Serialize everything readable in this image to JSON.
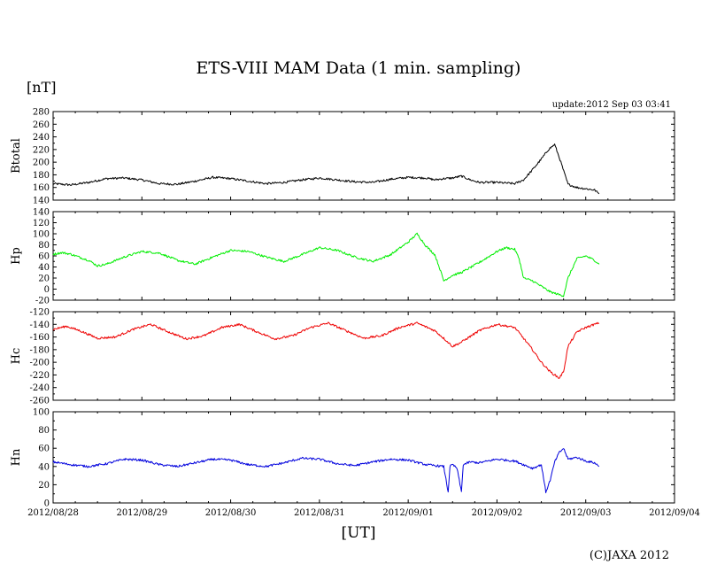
{
  "title": "ETS-VIII MAM Data (1 min. sampling)",
  "unit_label": "[nT]",
  "update_text": "update:2012 Sep 03 03:41",
  "x_unit_label": "[UT]",
  "copyright": "(C)JAXA 2012",
  "chart_data": [
    {
      "type": "line",
      "ylabel": "Btotal",
      "color": "#000000",
      "ylim": [
        140,
        280
      ],
      "yticks": [
        140,
        160,
        180,
        200,
        220,
        240,
        260,
        280
      ],
      "xlim": [
        0,
        7
      ],
      "x_tick_labels": [
        "2012/08/28",
        "2012/08/29",
        "2012/08/30",
        "2012/08/31",
        "2012/09/01",
        "2012/09/02",
        "2012/09/03",
        "2012/09/04"
      ],
      "series": [
        {
          "x": [
            0,
            0.2,
            0.4,
            0.6,
            0.8,
            1.0,
            1.2,
            1.4,
            1.6,
            1.8,
            2.0,
            2.2,
            2.4,
            2.6,
            2.8,
            3.0,
            3.2,
            3.4,
            3.6,
            3.8,
            4.0,
            4.2,
            4.3,
            4.4,
            4.5,
            4.6,
            4.7,
            4.8,
            5.0,
            5.1,
            5.2,
            5.3,
            5.4,
            5.5,
            5.58,
            5.65,
            5.72,
            5.8,
            5.9,
            6.0,
            6.1,
            6.15
          ],
          "y": [
            166,
            164,
            168,
            174,
            175,
            172,
            166,
            165,
            170,
            176,
            174,
            170,
            166,
            168,
            172,
            175,
            172,
            169,
            168,
            173,
            176,
            175,
            172,
            174,
            175,
            178,
            172,
            168,
            168,
            167,
            166,
            172,
            188,
            205,
            220,
            228,
            200,
            165,
            160,
            158,
            156,
            150
          ]
        }
      ]
    },
    {
      "type": "line",
      "ylabel": "Hp",
      "color": "#00ee00",
      "ylim": [
        -20,
        140
      ],
      "yticks": [
        -20,
        0,
        20,
        40,
        60,
        80,
        100,
        120,
        140
      ],
      "xlim": [
        0,
        7
      ],
      "x_tick_labels": [
        "2012/08/28",
        "2012/08/29",
        "2012/08/30",
        "2012/08/31",
        "2012/09/01",
        "2012/09/02",
        "2012/09/03",
        "2012/09/04"
      ],
      "series": [
        {
          "x": [
            0,
            0.1,
            0.2,
            0.4,
            0.5,
            0.6,
            0.8,
            1.0,
            1.2,
            1.4,
            1.6,
            1.8,
            2.0,
            2.2,
            2.4,
            2.6,
            2.8,
            3.0,
            3.2,
            3.4,
            3.6,
            3.8,
            4.0,
            4.1,
            4.2,
            4.3,
            4.35,
            4.4,
            4.5,
            4.6,
            4.8,
            5.0,
            5.1,
            5.2,
            5.25,
            5.3,
            5.4,
            5.5,
            5.6,
            5.7,
            5.75,
            5.8,
            5.9,
            6.0,
            6.1,
            6.15
          ],
          "y": [
            63,
            66,
            63,
            52,
            42,
            45,
            58,
            68,
            65,
            52,
            45,
            58,
            70,
            68,
            58,
            50,
            62,
            75,
            70,
            58,
            50,
            62,
            85,
            100,
            78,
            62,
            40,
            15,
            25,
            30,
            48,
            68,
            75,
            72,
            55,
            20,
            15,
            5,
            -5,
            -10,
            -12,
            20,
            55,
            60,
            52,
            45
          ]
        }
      ]
    },
    {
      "type": "line",
      "ylabel": "Hc",
      "color": "#ee0000",
      "ylim": [
        -260,
        -120
      ],
      "yticks": [
        -260,
        -240,
        -220,
        -200,
        -180,
        -160,
        -140,
        -120
      ],
      "xlim": [
        0,
        7
      ],
      "x_tick_labels": [
        "2012/08/28",
        "2012/08/29",
        "2012/08/30",
        "2012/08/31",
        "2012/09/01",
        "2012/09/02",
        "2012/09/03",
        "2012/09/04"
      ],
      "series": [
        {
          "x": [
            0,
            0.15,
            0.3,
            0.5,
            0.7,
            0.9,
            1.1,
            1.3,
            1.5,
            1.7,
            1.9,
            2.1,
            2.3,
            2.5,
            2.7,
            2.9,
            3.1,
            3.3,
            3.5,
            3.7,
            3.9,
            4.1,
            4.3,
            4.4,
            4.5,
            4.6,
            4.8,
            5.0,
            5.2,
            5.3,
            5.4,
            5.5,
            5.6,
            5.7,
            5.75,
            5.8,
            5.9,
            6.0,
            6.1,
            6.15
          ],
          "y": [
            -148,
            -143,
            -150,
            -162,
            -160,
            -148,
            -140,
            -152,
            -163,
            -158,
            -145,
            -140,
            -152,
            -163,
            -158,
            -145,
            -138,
            -150,
            -162,
            -158,
            -145,
            -138,
            -150,
            -162,
            -175,
            -168,
            -150,
            -140,
            -145,
            -162,
            -180,
            -200,
            -215,
            -225,
            -215,
            -175,
            -152,
            -145,
            -140,
            -138
          ]
        }
      ]
    },
    {
      "type": "line",
      "ylabel": "Hn",
      "color": "#0000dd",
      "ylim": [
        0,
        100
      ],
      "yticks": [
        0,
        20,
        40,
        60,
        80,
        100
      ],
      "xlim": [
        0,
        7
      ],
      "x_tick_labels": [
        "2012/08/28",
        "2012/08/29",
        "2012/08/30",
        "2012/08/31",
        "2012/09/01",
        "2012/09/02",
        "2012/09/03",
        "2012/09/04"
      ],
      "series": [
        {
          "x": [
            0,
            0.2,
            0.4,
            0.6,
            0.8,
            1.0,
            1.2,
            1.4,
            1.6,
            1.8,
            2.0,
            2.2,
            2.4,
            2.6,
            2.8,
            3.0,
            3.2,
            3.4,
            3.6,
            3.8,
            4.0,
            4.2,
            4.4,
            4.45,
            4.47,
            4.5,
            4.55,
            4.6,
            4.62,
            4.7,
            4.8,
            5.0,
            5.2,
            5.3,
            5.4,
            5.5,
            5.55,
            5.6,
            5.65,
            5.7,
            5.75,
            5.8,
            5.9,
            6.0,
            6.1,
            6.15
          ],
          "y": [
            45,
            42,
            40,
            43,
            48,
            47,
            42,
            40,
            44,
            48,
            47,
            42,
            40,
            44,
            49,
            48,
            43,
            41,
            45,
            48,
            47,
            42,
            40,
            12,
            40,
            42,
            38,
            12,
            42,
            45,
            44,
            48,
            46,
            42,
            38,
            42,
            12,
            25,
            45,
            55,
            60,
            48,
            50,
            46,
            44,
            40
          ]
        }
      ]
    }
  ]
}
